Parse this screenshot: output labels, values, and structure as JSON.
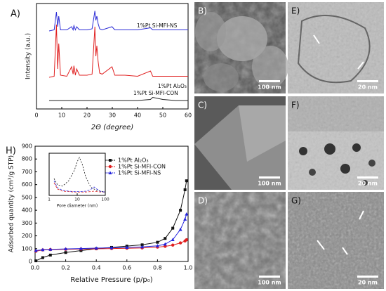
{
  "chart_data": [
    {
      "type": "line",
      "panel": "A)",
      "xlabel": "2Θ (degree)",
      "ylabel": "Intensity (a.u.)",
      "x": [
        5,
        7,
        7.9,
        8.4,
        8.8,
        9.5,
        12,
        13.9,
        14.5,
        14.8,
        15.4,
        15.9,
        17,
        20,
        22,
        23.1,
        23.5,
        23.9,
        24.4,
        25,
        26,
        29.9,
        31,
        35,
        40,
        45.1,
        46,
        50,
        55,
        60
      ],
      "series": [
        {
          "name": "1%Pt Si-MFI-NS",
          "color": "#2b2bd6",
          "values": [
            74,
            75,
            92,
            78,
            88,
            75,
            75,
            78,
            75,
            79,
            75,
            78,
            75,
            75,
            76,
            93,
            84,
            88,
            81,
            76,
            75,
            78,
            75,
            75,
            75,
            77,
            75,
            75,
            75,
            75
          ]
        },
        {
          "name": "1%Pt Si-MFI-CON",
          "color": "#e02020",
          "values": [
            30,
            31,
            80,
            38,
            62,
            32,
            31,
            40,
            33,
            41,
            32,
            38,
            32,
            32,
            33,
            78,
            50,
            60,
            45,
            34,
            33,
            40,
            32,
            32,
            31,
            36,
            31,
            31,
            31,
            31
          ]
        },
        {
          "name": "1%Pt Al₂O₃",
          "color": "#222222",
          "values": [
            8,
            8,
            8,
            8,
            8,
            8,
            8,
            8,
            8,
            8,
            8,
            8,
            8,
            8,
            8,
            8,
            8,
            8,
            8,
            8,
            8,
            8,
            8,
            8,
            8,
            9,
            11,
            9,
            8,
            8
          ]
        }
      ],
      "xlim": [
        0,
        60
      ],
      "xticks": [
        0,
        10,
        20,
        30,
        40,
        50,
        60
      ],
      "ylim": [
        0,
        100
      ],
      "yticks": []
    },
    {
      "type": "line",
      "panel": "H)",
      "xlabel": "Relative Pressure (p/p₀)",
      "ylabel": "Adsorbed quantity (cm³/g STP)",
      "legend": "upper right",
      "x": [
        0.005,
        0.05,
        0.1,
        0.2,
        0.3,
        0.4,
        0.5,
        0.6,
        0.7,
        0.8,
        0.85,
        0.9,
        0.95,
        0.98,
        0.99
      ],
      "series": [
        {
          "name": "1%Pt Al₂O₃",
          "color": "#111111",
          "marker": "square",
          "values": [
            5,
            30,
            50,
            70,
            85,
            100,
            110,
            120,
            130,
            150,
            180,
            260,
            400,
            560,
            630
          ]
        },
        {
          "name": "1%Pt Si-MFI-CON",
          "color": "#e02020",
          "marker": "circle",
          "values": [
            80,
            90,
            93,
            95,
            97,
            99,
            101,
            103,
            106,
            112,
            118,
            128,
            145,
            160,
            170
          ]
        },
        {
          "name": "1%Pt Si-MFI-NS",
          "color": "#2222dd",
          "marker": "triangle",
          "values": [
            85,
            92,
            95,
            98,
            101,
            104,
            107,
            110,
            114,
            122,
            135,
            170,
            250,
            330,
            370
          ]
        }
      ],
      "xlim": [
        0,
        1.0
      ],
      "xticks": [
        {
          "value": 0,
          "label": "0.0"
        },
        {
          "value": 0.2,
          "label": "0.2"
        },
        {
          "value": 0.4,
          "label": "0.4"
        },
        {
          "value": 0.6,
          "label": "0.6"
        },
        {
          "value": 0.8,
          "label": "0.8"
        },
        {
          "value": 1,
          "label": "1.0"
        }
      ],
      "ylim": [
        0,
        900
      ],
      "yticks": [
        0,
        100,
        200,
        300,
        400,
        500,
        600,
        700,
        800,
        900
      ]
    },
    {
      "type": "line",
      "xlabel": "Pore diameter (nm)",
      "xscale": "log",
      "x": [
        1.5,
        2,
        3,
        5,
        8,
        10,
        12,
        15,
        20,
        30,
        40,
        50,
        70,
        100
      ],
      "series": [
        {
          "color": "#111111",
          "dash": "2,2",
          "values": [
            40,
            25,
            22,
            35,
            60,
            80,
            90,
            75,
            45,
            20,
            15,
            12,
            10,
            8
          ]
        },
        {
          "color": "#e02020",
          "dash": "3,2",
          "values": [
            30,
            15,
            10,
            9,
            8,
            8,
            8,
            8,
            8,
            9,
            10,
            9,
            8,
            8
          ]
        },
        {
          "color": "#2222dd",
          "dash": "3,2",
          "values": [
            35,
            18,
            12,
            10,
            9,
            9,
            9,
            9,
            10,
            14,
            20,
            15,
            9,
            8
          ]
        }
      ],
      "xlim": [
        1,
        100
      ],
      "xticks": [
        1,
        10,
        100
      ],
      "ylim": [
        0,
        100
      ],
      "yticks": []
    }
  ],
  "micrographs": [
    {
      "label": "B)",
      "scale_bar": "100 nm"
    },
    {
      "label": "E)",
      "scale_bar": "20 nm"
    },
    {
      "label": "C)",
      "scale_bar": "100 nm"
    },
    {
      "label": "F)",
      "scale_bar": "20 nm"
    },
    {
      "label": "D)",
      "scale_bar": "100 nm"
    },
    {
      "label": "G)",
      "scale_bar": "20 nm"
    }
  ]
}
